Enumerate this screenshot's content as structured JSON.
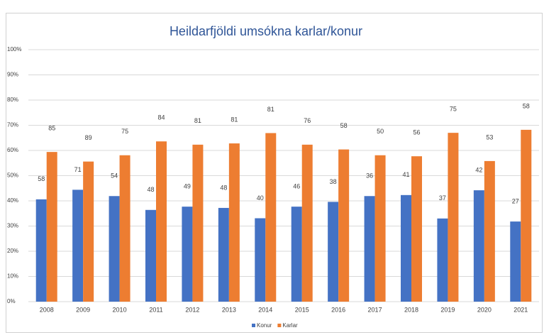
{
  "chart_data": {
    "type": "bar",
    "title": "Heildarfjöldi umsókna karlar/konur",
    "categories": [
      "2008",
      "2009",
      "2010",
      "2011",
      "2012",
      "2013",
      "2014",
      "2015",
      "2016",
      "2017",
      "2018",
      "2019",
      "2020",
      "2021"
    ],
    "series": [
      {
        "name": "Konur",
        "color": "#4472c4",
        "values": [
          40.6,
          44.4,
          41.9,
          36.4,
          37.7,
          37.2,
          33.1,
          37.7,
          39.6,
          41.9,
          42.3,
          33.0,
          44.2,
          31.8
        ],
        "counts": [
          58,
          71,
          54,
          48,
          49,
          48,
          40,
          46,
          38,
          36,
          41,
          37,
          42,
          27
        ]
      },
      {
        "name": "Karlar",
        "color": "#ed7d31",
        "values": [
          59.4,
          55.6,
          58.1,
          63.6,
          62.3,
          62.8,
          66.9,
          62.3,
          60.4,
          58.1,
          57.7,
          67.0,
          55.8,
          68.2
        ],
        "counts": [
          85,
          89,
          75,
          84,
          81,
          81,
          81,
          76,
          58,
          50,
          56,
          75,
          53,
          58
        ]
      }
    ],
    "ylim": [
      0,
      100
    ],
    "yticks": [
      {
        "value": 0,
        "label": "0%"
      },
      {
        "value": 10,
        "label": "10%"
      },
      {
        "value": 20,
        "label": "20%"
      },
      {
        "value": 30,
        "label": "30%"
      },
      {
        "value": 40,
        "label": "40%"
      },
      {
        "value": 50,
        "label": "50%"
      },
      {
        "value": 60,
        "label": "60%"
      },
      {
        "value": 70,
        "label": "70%"
      },
      {
        "value": 80,
        "label": "80%"
      },
      {
        "value": 90,
        "label": "90%"
      },
      {
        "value": 100,
        "label": "100%"
      }
    ],
    "grid": true,
    "legend": "bottom"
  }
}
